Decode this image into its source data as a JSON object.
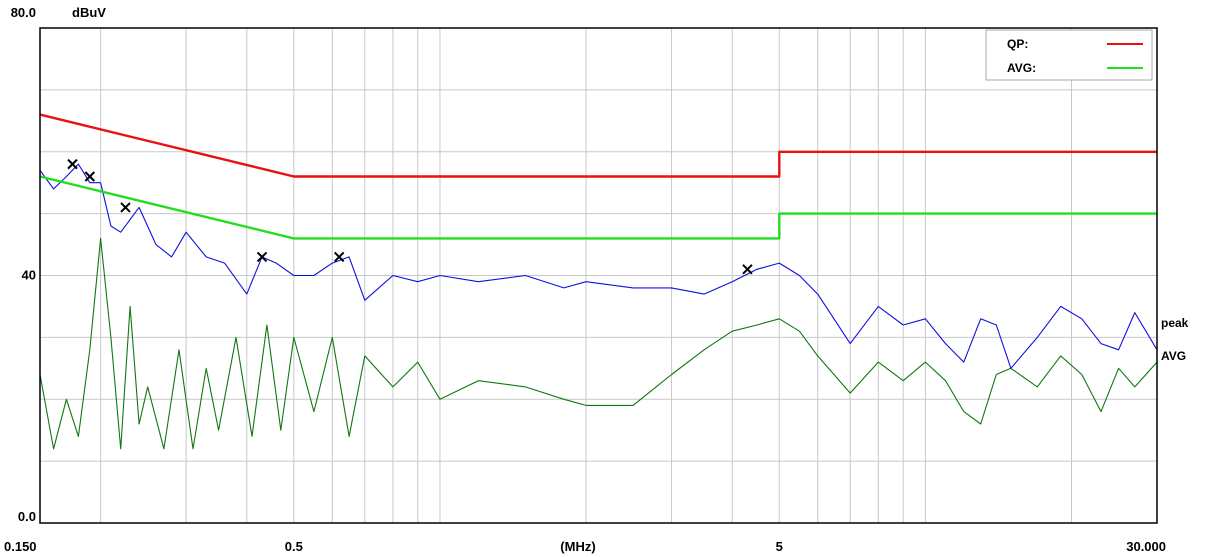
{
  "chart_data": {
    "type": "line",
    "title": "",
    "xlabel": "(MHz)",
    "ylabel": "dBuV",
    "x_scale": "log",
    "xlim": [
      0.15,
      30
    ],
    "ylim": [
      0,
      80
    ],
    "grid": true,
    "y_tick_labels": [
      "80.0",
      "40",
      "0.0"
    ],
    "y_tick_values": [
      80,
      40,
      0
    ],
    "x_tick_labels": [
      "0.150",
      "0.5",
      "5",
      "30.000"
    ],
    "x_tick_values": [
      0.15,
      0.5,
      5,
      30
    ],
    "legend": {
      "placement": "top-right",
      "entries": [
        {
          "label": "QP:",
          "color": "#e81010"
        },
        {
          "label": "AVG:",
          "color": "#22dd22"
        }
      ]
    },
    "series": [
      {
        "name": "QP:",
        "role": "limit",
        "color": "#e81010",
        "x": [
          0.15,
          0.5,
          0.5,
          5,
          5,
          30
        ],
        "y": [
          66,
          56,
          56,
          56,
          60,
          60
        ]
      },
      {
        "name": "AVG:",
        "role": "limit",
        "color": "#22dd22",
        "x": [
          0.15,
          0.5,
          0.5,
          5,
          5,
          30
        ],
        "y": [
          56,
          46,
          46,
          46,
          50,
          50
        ]
      },
      {
        "name": "peak",
        "role": "trace",
        "color": "#1010dd",
        "label_color": "#000000",
        "x": [
          0.15,
          0.16,
          0.17,
          0.18,
          0.19,
          0.2,
          0.21,
          0.22,
          0.24,
          0.26,
          0.28,
          0.3,
          0.33,
          0.36,
          0.4,
          0.43,
          0.46,
          0.5,
          0.55,
          0.6,
          0.65,
          0.7,
          0.8,
          0.9,
          1.0,
          1.2,
          1.5,
          1.8,
          2.0,
          2.5,
          3.0,
          3.5,
          4.0,
          4.5,
          5.0,
          5.5,
          6.0,
          7.0,
          8.0,
          9.0,
          10,
          11,
          12,
          13,
          14,
          15,
          17,
          19,
          21,
          23,
          25,
          27,
          30
        ],
        "y": [
          57,
          54,
          56,
          58,
          55,
          55,
          48,
          47,
          51,
          45,
          43,
          47,
          43,
          42,
          37,
          43,
          42,
          40,
          40,
          42,
          43,
          36,
          40,
          39,
          40,
          39,
          40,
          38,
          39,
          38,
          38,
          37,
          39,
          41,
          42,
          40,
          37,
          29,
          35,
          32,
          33,
          29,
          26,
          33,
          32,
          25,
          30,
          35,
          33,
          29,
          28,
          34,
          28
        ]
      },
      {
        "name": "AVG",
        "role": "trace",
        "color": "#117711",
        "label_color": "#117711",
        "x": [
          0.15,
          0.16,
          0.17,
          0.18,
          0.19,
          0.2,
          0.21,
          0.22,
          0.23,
          0.24,
          0.25,
          0.27,
          0.29,
          0.31,
          0.33,
          0.35,
          0.38,
          0.41,
          0.44,
          0.47,
          0.5,
          0.55,
          0.6,
          0.65,
          0.7,
          0.8,
          0.9,
          1.0,
          1.2,
          1.5,
          1.8,
          2.0,
          2.5,
          3.0,
          3.5,
          4.0,
          4.5,
          5.0,
          5.5,
          6.0,
          7.0,
          8.0,
          9.0,
          10,
          11,
          12,
          13,
          14,
          15,
          17,
          19,
          21,
          23,
          25,
          27,
          30
        ],
        "y": [
          24,
          12,
          20,
          14,
          28,
          46,
          30,
          12,
          35,
          16,
          22,
          12,
          28,
          12,
          25,
          15,
          30,
          14,
          32,
          15,
          30,
          18,
          30,
          14,
          27,
          22,
          26,
          20,
          23,
          22,
          20,
          19,
          19,
          24,
          28,
          31,
          32,
          33,
          31,
          27,
          21,
          26,
          23,
          26,
          23,
          18,
          16,
          24,
          25,
          22,
          27,
          24,
          18,
          25,
          22,
          26
        ]
      }
    ],
    "markers": {
      "symbol": "x",
      "points": [
        {
          "x": 0.175,
          "y": 58
        },
        {
          "x": 0.19,
          "y": 56
        },
        {
          "x": 0.225,
          "y": 51
        },
        {
          "x": 0.43,
          "y": 43
        },
        {
          "x": 0.62,
          "y": 43
        },
        {
          "x": 4.3,
          "y": 41
        }
      ]
    }
  }
}
